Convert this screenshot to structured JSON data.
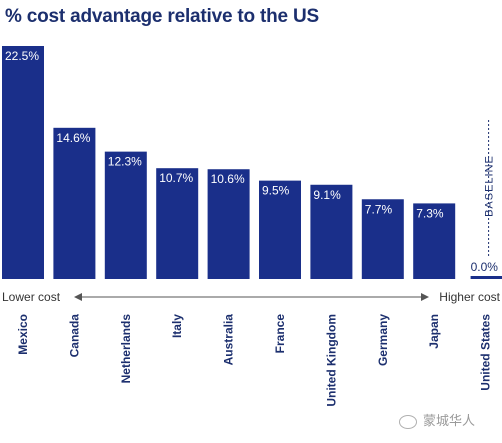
{
  "title": "% cost advantage relative to the US",
  "chart_data": {
    "type": "bar",
    "title": "% cost advantage relative to the US",
    "categories": [
      "Mexico",
      "Canada",
      "Netherlands",
      "Italy",
      "Australia",
      "France",
      "United Kingdom",
      "Germany",
      "Japan",
      "United States"
    ],
    "values": [
      22.5,
      14.6,
      12.3,
      10.7,
      10.6,
      9.5,
      9.1,
      7.7,
      7.3,
      0.0
    ],
    "value_labels": [
      "22.5%",
      "14.6%",
      "12.3%",
      "10.7%",
      "10.6%",
      "9.5%",
      "9.1%",
      "7.7%",
      "7.3%",
      "0.0%"
    ],
    "baseline_label": "BASELINE",
    "axis_left_label": "Lower cost",
    "axis_right_label": "Higher cost",
    "ylim": [
      0,
      22.5
    ],
    "grid": false,
    "bar_color": "#1a2f8a",
    "text_color": "#1c2f6e"
  },
  "watermark": "蒙城华人"
}
